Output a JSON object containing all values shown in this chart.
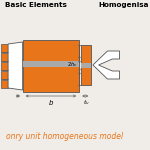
{
  "bg_color": "#f0ede8",
  "orange": "#e8751a",
  "gray": "#aaaaaa",
  "dark_gray": "#555555",
  "line_color": "#666666",
  "white": "#ffffff",
  "title1": "Basic Elements",
  "title2": "Homogenisa",
  "caption": "onry unit homogeneous model",
  "fig_width": 1.5,
  "fig_height": 1.5,
  "dpi": 100
}
